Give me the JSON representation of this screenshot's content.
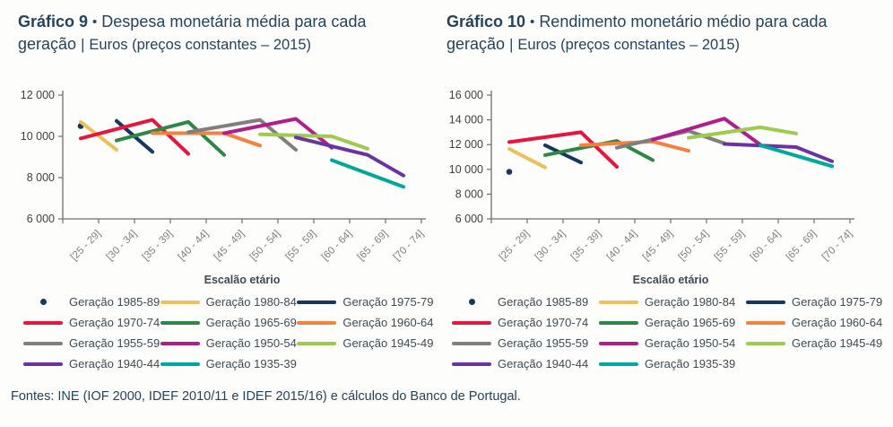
{
  "footer": {
    "text": "Fontes: INE (IOF 2000, IDEF 2010/11 e IDEF 2015/16) e cálculos do Banco de Portugal."
  },
  "colors": {
    "title_text": "#24435c",
    "axis": "#6e6e6e",
    "tick_label": "#404040",
    "x_label": "#7f7f7f",
    "legend_text": "#3f4a52"
  },
  "chart_data": [
    {
      "type": "line",
      "title": {
        "prefix": "Gráfico 9",
        "bullet": "•",
        "main": "Despesa monetária média para cada geração",
        "separator": "|",
        "unit": "Euros (preços constantes – 2015)"
      },
      "xlabel": "Escalão etário",
      "categories": [
        "[25 - 29]",
        "[30 - 34]",
        "[35 - 39]",
        "[40 - 44]",
        "[45 - 49]",
        "[50 - 54]",
        "[55 - 59]",
        "[60 - 64]",
        "[65 - 69]",
        "[70 - 74]"
      ],
      "ylim": [
        6000,
        12000
      ],
      "ytick_step": 2000,
      "grid": false,
      "legend_position": "bottom",
      "series": [
        {
          "name": "Geração 1985-89",
          "color": "#17375e",
          "marker": "dot",
          "points": [
            [
              0,
              10500
            ]
          ]
        },
        {
          "name": "Geração 1980-84",
          "color": "#ebc05c",
          "marker": "line",
          "points": [
            [
              0,
              10700
            ],
            [
              1,
              9350
            ]
          ]
        },
        {
          "name": "Geração 1975-79",
          "color": "#17375e",
          "marker": "line",
          "points": [
            [
              1,
              10750
            ],
            [
              2,
              9250
            ]
          ]
        },
        {
          "name": "Geração 1970-74",
          "color": "#e5173f",
          "marker": "line",
          "points": [
            [
              0,
              9900
            ],
            [
              2,
              10800
            ],
            [
              3,
              9150
            ]
          ]
        },
        {
          "name": "Geração 1965-69",
          "color": "#2d8747",
          "marker": "line",
          "points": [
            [
              1,
              9800
            ],
            [
              3,
              10700
            ],
            [
              4,
              9100
            ]
          ]
        },
        {
          "name": "Geração 1960-64",
          "color": "#f5813e",
          "marker": "line",
          "points": [
            [
              2,
              10150
            ],
            [
              4,
              10150
            ],
            [
              5,
              9550
            ]
          ]
        },
        {
          "name": "Geração 1955-59",
          "color": "#7f7f7f",
          "marker": "line",
          "points": [
            [
              3,
              10200
            ],
            [
              5,
              10800
            ],
            [
              6,
              9350
            ]
          ]
        },
        {
          "name": "Geração 1950-54",
          "color": "#af1e8c",
          "marker": "line",
          "points": [
            [
              4,
              10150
            ],
            [
              6,
              10850
            ],
            [
              7,
              9450
            ]
          ]
        },
        {
          "name": "Geração 1945-49",
          "color": "#9dcb4e",
          "marker": "line",
          "points": [
            [
              5,
              10100
            ],
            [
              7,
              10000
            ],
            [
              8,
              9400
            ]
          ]
        },
        {
          "name": "Geração 1940-44",
          "color": "#6a33a2",
          "marker": "line",
          "points": [
            [
              6,
              9950
            ],
            [
              8,
              9100
            ],
            [
              9,
              8100
            ]
          ]
        },
        {
          "name": "Geração 1935-39",
          "color": "#00a79d",
          "marker": "line",
          "points": [
            [
              7,
              8850
            ],
            [
              9,
              7550
            ]
          ]
        }
      ]
    },
    {
      "type": "line",
      "title": {
        "prefix": "Gráfico 10",
        "bullet": "•",
        "main": "Rendimento monetário médio para cada geração",
        "separator": "|",
        "unit": "Euros (preços constantes – 2015)"
      },
      "xlabel": "Escalão etário",
      "categories": [
        "[25 - 29]",
        "[30 - 34]",
        "[35 - 39]",
        "[40 - 44]",
        "[45 - 49]",
        "[50 - 54]",
        "[55 - 59]",
        "[60 - 64]",
        "[65 - 69]",
        "[70 - 74]"
      ],
      "ylim": [
        6000,
        16000
      ],
      "ytick_step": 2000,
      "grid": false,
      "legend_position": "bottom",
      "series": [
        {
          "name": "Geração 1985-89",
          "color": "#17375e",
          "marker": "dot",
          "points": [
            [
              0,
              9800
            ]
          ]
        },
        {
          "name": "Geração 1980-84",
          "color": "#ebc05c",
          "marker": "line",
          "points": [
            [
              0,
              11650
            ],
            [
              1,
              10150
            ]
          ]
        },
        {
          "name": "Geração 1975-79",
          "color": "#17375e",
          "marker": "line",
          "points": [
            [
              1,
              11950
            ],
            [
              2,
              10550
            ]
          ]
        },
        {
          "name": "Geração 1970-74",
          "color": "#e5173f",
          "marker": "line",
          "points": [
            [
              0,
              12200
            ],
            [
              2,
              13000
            ],
            [
              3,
              10200
            ]
          ]
        },
        {
          "name": "Geração 1965-69",
          "color": "#2d8747",
          "marker": "line",
          "points": [
            [
              1,
              11150
            ],
            [
              3,
              12300
            ],
            [
              4,
              10750
            ]
          ]
        },
        {
          "name": "Geração 1960-64",
          "color": "#f5813e",
          "marker": "line",
          "points": [
            [
              2,
              11950
            ],
            [
              4,
              12250
            ],
            [
              5,
              11500
            ]
          ]
        },
        {
          "name": "Geração 1955-59",
          "color": "#7f7f7f",
          "marker": "line",
          "points": [
            [
              3,
              11750
            ],
            [
              5,
              13100
            ],
            [
              6,
              12100
            ]
          ]
        },
        {
          "name": "Geração 1950-54",
          "color": "#af1e8c",
          "marker": "line",
          "points": [
            [
              4,
              12400
            ],
            [
              6,
              14100
            ],
            [
              7,
              12000
            ]
          ]
        },
        {
          "name": "Geração 1945-49",
          "color": "#9dcb4e",
          "marker": "line",
          "points": [
            [
              5,
              12550
            ],
            [
              7,
              13400
            ],
            [
              8,
              12900
            ]
          ]
        },
        {
          "name": "Geração 1940-44",
          "color": "#6a33a2",
          "marker": "line",
          "points": [
            [
              6,
              12050
            ],
            [
              8,
              11800
            ],
            [
              9,
              10650
            ]
          ]
        },
        {
          "name": "Geração 1935-39",
          "color": "#00a79d",
          "marker": "line",
          "points": [
            [
              7,
              11950
            ],
            [
              9,
              10250
            ]
          ]
        }
      ]
    }
  ]
}
